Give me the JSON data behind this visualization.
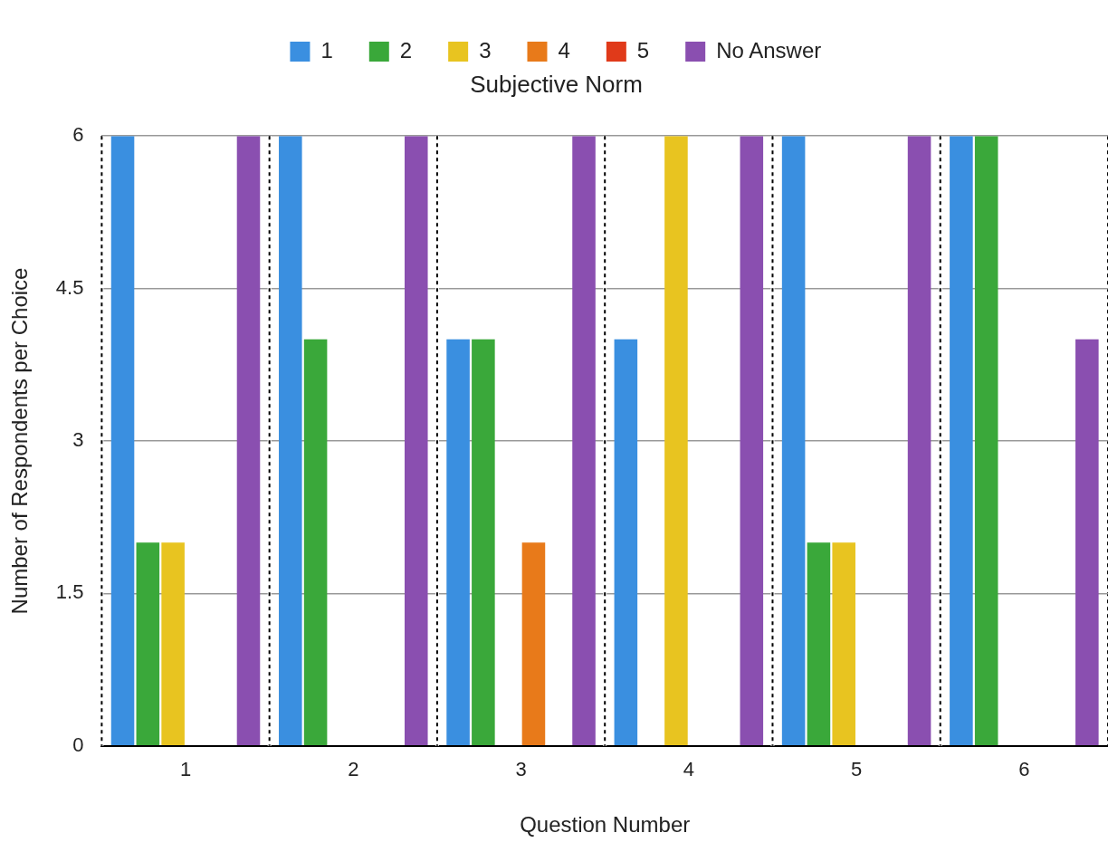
{
  "chart_data": {
    "type": "bar",
    "title": "Subjective Norm",
    "xlabel": "Question Number",
    "ylabel": "Number of Respondents per Choice",
    "categories": [
      "1",
      "2",
      "3",
      "4",
      "5",
      "6"
    ],
    "series": [
      {
        "name": "1",
        "color": "#3a8fe0",
        "values": [
          6,
          6,
          4,
          4,
          6,
          6
        ]
      },
      {
        "name": "2",
        "color": "#3aa83a",
        "values": [
          2,
          4,
          4,
          0,
          2,
          6
        ]
      },
      {
        "name": "3",
        "color": "#e8c420",
        "values": [
          2,
          0,
          0,
          6,
          2,
          0
        ]
      },
      {
        "name": "4",
        "color": "#e87a1a",
        "values": [
          0,
          0,
          2,
          0,
          0,
          0
        ]
      },
      {
        "name": "5",
        "color": "#e03a1a",
        "values": [
          0,
          0,
          0,
          0,
          0,
          0
        ]
      },
      {
        "name": "No Answer",
        "color": "#8a4fb0",
        "values": [
          6,
          6,
          6,
          6,
          6,
          4
        ]
      }
    ],
    "ylim": [
      0,
      6
    ],
    "yticks": [
      0,
      1.5,
      3,
      4.5,
      6
    ],
    "grid": true,
    "legend": "top"
  }
}
